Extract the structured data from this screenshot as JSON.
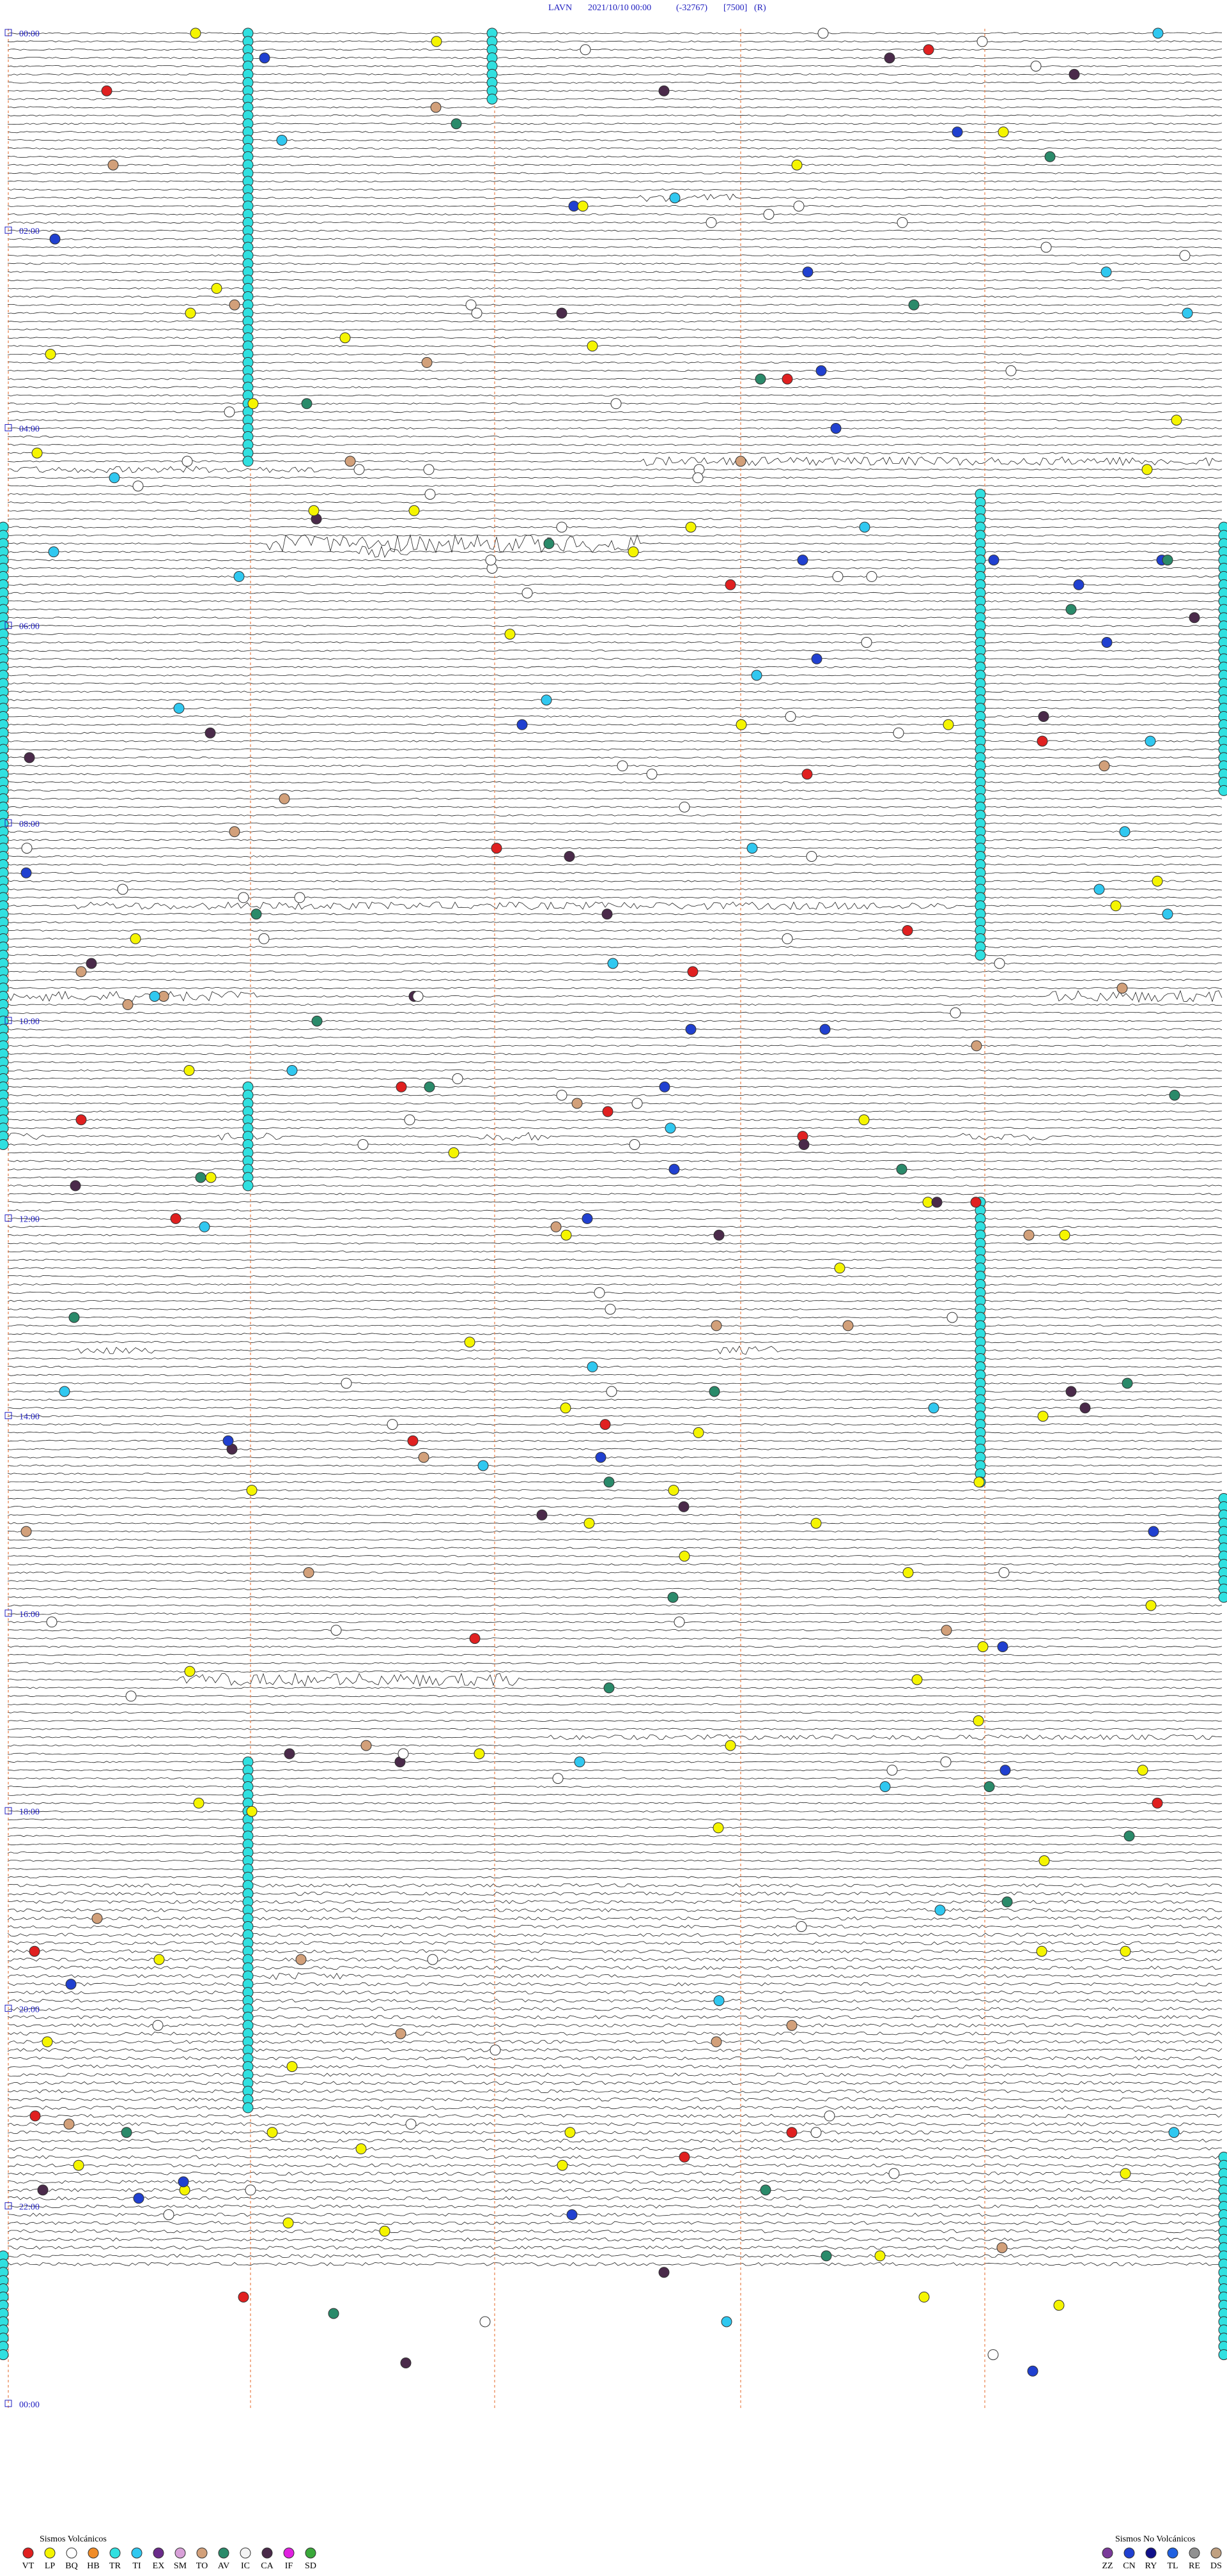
{
  "header": {
    "station": "LAVN",
    "datetime": "2021/10/10 00:00",
    "code": "(-32767)",
    "scale": "[7500]",
    "mode": "(R)"
  },
  "time_labels": [
    "00:00",
    "02:00",
    "04:00",
    "06:00",
    "08:00",
    "10:00",
    "12:00",
    "14:00",
    "16:00",
    "18:00",
    "20:00",
    "22:00",
    "00:00"
  ],
  "legend_volcanic": {
    "title": "Sismos Volcánicos",
    "items": [
      {
        "label": "VT",
        "color": "#e02020"
      },
      {
        "label": "LP",
        "color": "#f5f500"
      },
      {
        "label": "BQ",
        "color": "#ffffff"
      },
      {
        "label": "HB",
        "color": "#f08c28"
      },
      {
        "label": "TR",
        "color": "#30e0e0"
      },
      {
        "label": "TI",
        "color": "#30c8f0"
      },
      {
        "label": "EX",
        "color": "#6a2a8a"
      },
      {
        "label": "SM",
        "color": "#d8a0d8"
      },
      {
        "label": "TO",
        "color": "#d2a07a"
      },
      {
        "label": "AV",
        "color": "#2a8a6a"
      },
      {
        "label": "IC",
        "color": "#f4f4f4"
      },
      {
        "label": "CA",
        "color": "#4a2a4a"
      },
      {
        "label": "IF",
        "color": "#e020e0"
      },
      {
        "label": "SD",
        "color": "#3aa83a"
      }
    ]
  },
  "legend_non_volcanic": {
    "title": "Sismos No Volcánicos",
    "items": [
      {
        "label": "ZZ",
        "color": "#7a3a9a"
      },
      {
        "label": "CN",
        "color": "#2040d0"
      },
      {
        "label": "RY",
        "color": "#10108a"
      },
      {
        "label": "TL",
        "color": "#2060e0"
      },
      {
        "label": "RE",
        "color": "#909090"
      },
      {
        "label": "DS",
        "color": "#c0a080"
      }
    ]
  }
}
